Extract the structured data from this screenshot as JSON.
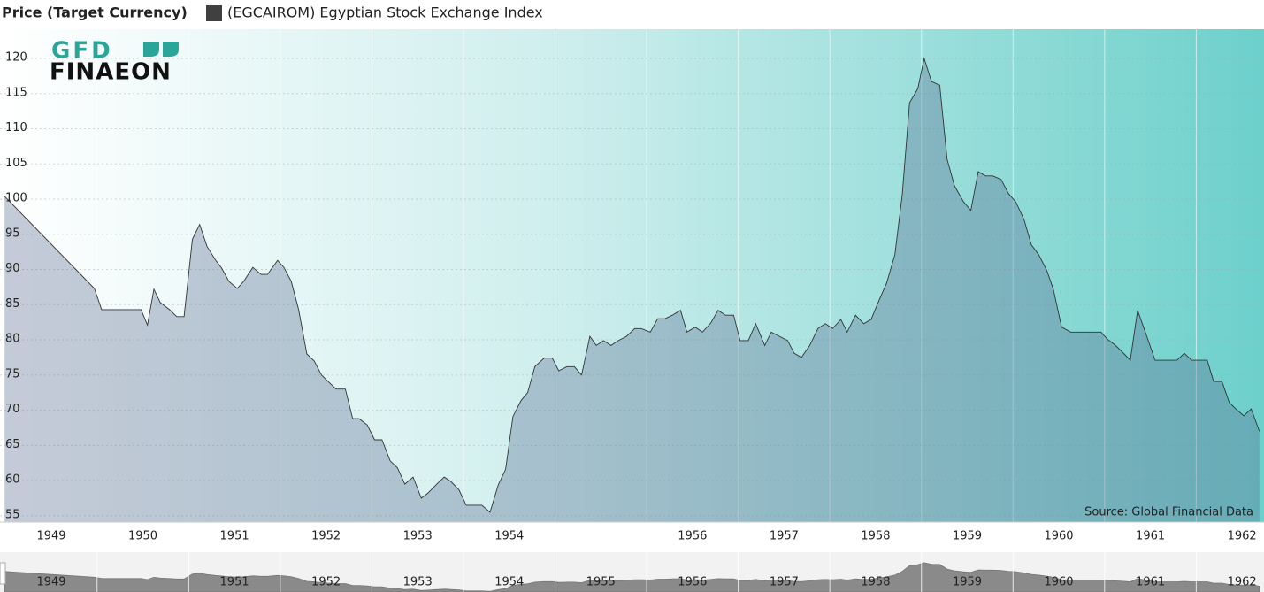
{
  "chart_data": {
    "type": "area",
    "legend_title": "Price (Target Currency)",
    "source": "Source: Global Financial Data",
    "logo": {
      "top": "GFD",
      "bottom": "FINAEON"
    },
    "x": [
      1948.99,
      1949.97,
      1950.05,
      1950.48,
      1950.55,
      1950.62,
      1950.69,
      1950.79,
      1950.87,
      1950.95,
      1951.04,
      1951.12,
      1951.2,
      1951.29,
      1951.36,
      1951.44,
      1951.53,
      1951.6,
      1951.7,
      1951.79,
      1951.86,
      1951.97,
      1952.04,
      1952.12,
      1952.2,
      1952.29,
      1952.37,
      1952.45,
      1952.53,
      1952.61,
      1952.71,
      1952.79,
      1952.86,
      1952.95,
      1953.03,
      1953.11,
      1953.2,
      1953.28,
      1953.36,
      1953.45,
      1953.54,
      1953.61,
      1953.7,
      1953.79,
      1953.86,
      1953.95,
      1954.03,
      1954.11,
      1954.2,
      1954.29,
      1954.38,
      1954.46,
      1954.54,
      1954.63,
      1954.7,
      1954.78,
      1954.88,
      1954.97,
      1955.04,
      1955.13,
      1955.21,
      1955.29,
      1955.38,
      1955.45,
      1955.53,
      1955.61,
      1955.69,
      1955.78,
      1955.87,
      1955.94,
      1956.04,
      1956.12,
      1956.2,
      1956.28,
      1956.37,
      1956.44,
      1956.53,
      1956.61,
      1956.7,
      1956.78,
      1956.86,
      1956.95,
      1957.02,
      1957.11,
      1957.19,
      1957.29,
      1957.36,
      1957.45,
      1957.54,
      1957.61,
      1957.69,
      1957.78,
      1957.87,
      1957.95,
      1958.03,
      1958.12,
      1958.19,
      1958.28,
      1958.37,
      1958.45,
      1958.53,
      1958.62,
      1958.71,
      1958.79,
      1958.87,
      1958.96,
      1959.03,
      1959.11,
      1959.2,
      1959.28,
      1959.36,
      1959.46,
      1959.54,
      1959.62,
      1959.7,
      1959.78,
      1959.87,
      1959.95,
      1960.03,
      1960.12,
      1960.2,
      1960.28,
      1960.37,
      1960.44,
      1960.53,
      1960.63,
      1960.71,
      1960.88,
      1960.96,
      1961.03,
      1961.12,
      1961.2,
      1961.28,
      1961.36,
      1961.46,
      1961.55,
      1961.62,
      1961.79,
      1961.87,
      1961.95,
      1962.12,
      1962.19,
      1962.28,
      1962.36,
      1962.44,
      1962.52,
      1962.6,
      1962.69
    ],
    "series": [
      {
        "name": "(EGCAIROM) Egyptian Stock Exchange Index",
        "color": "#404040",
        "line_color": "#333333",
        "area_color": "#5a6a8f",
        "values": [
          100.4,
          87.3,
          84.3,
          84.3,
          82.1,
          87.2,
          85.3,
          84.3,
          83.3,
          83.3,
          94.3,
          96.4,
          93.3,
          91.4,
          90.2,
          88.3,
          87.3,
          88.3,
          90.3,
          89.3,
          89.3,
          91.3,
          90.3,
          88.3,
          84.3,
          78.0,
          77.0,
          75.0,
          74.0,
          73.0,
          73.0,
          68.8,
          68.8,
          67.9,
          65.8,
          65.8,
          62.8,
          61.8,
          59.5,
          60.5,
          57.5,
          58.2,
          59.4,
          60.5,
          59.9,
          58.7,
          56.5,
          56.5,
          56.5,
          55.5,
          59.4,
          61.6,
          69.1,
          71.4,
          72.5,
          76.2,
          77.4,
          77.4,
          75.6,
          76.2,
          76.2,
          75.0,
          80.5,
          79.2,
          79.9,
          79.2,
          79.9,
          80.5,
          81.6,
          81.6,
          81.1,
          83.0,
          83.0,
          83.5,
          84.2,
          81.1,
          81.8,
          81.1,
          82.4,
          84.2,
          83.5,
          83.5,
          79.9,
          79.9,
          82.3,
          79.2,
          81.1,
          80.5,
          79.9,
          78.1,
          77.5,
          79.2,
          81.6,
          82.3,
          81.6,
          82.9,
          81.1,
          83.5,
          82.3,
          82.9,
          85.4,
          88.1,
          92.1,
          100.6,
          113.7,
          115.7,
          120.0,
          116.7,
          116.2,
          105.7,
          101.9,
          99.6,
          98.4,
          103.9,
          103.3,
          103.3,
          102.8,
          100.8,
          99.6,
          97.1,
          93.5,
          92.1,
          89.8,
          87.2,
          81.8,
          81.1,
          81.1,
          81.1,
          81.1,
          80.1,
          79.2,
          78.2,
          77.1,
          84.2,
          80.5,
          77.1,
          77.1,
          77.1,
          78.1,
          77.1,
          77.1,
          74.1,
          74.1,
          71.1,
          70.1,
          69.2,
          70.2,
          67.0
        ]
      }
    ],
    "xlim": [
      1948.94,
      1962.74
    ],
    "ylim": [
      54.1,
      124.15
    ],
    "yticks": [
      55,
      60,
      65,
      70,
      75,
      80,
      85,
      90,
      95,
      100,
      105,
      110,
      115,
      120
    ],
    "xticks": [
      {
        "value": 1949.5,
        "label": "1949"
      },
      {
        "value": 1950.5,
        "label": "1950"
      },
      {
        "value": 1951.5,
        "label": "1951"
      },
      {
        "value": 1952.5,
        "label": "1952"
      },
      {
        "value": 1953.5,
        "label": "1953"
      },
      {
        "value": 1954.5,
        "label": "1954"
      },
      {
        "value": 1956.5,
        "label": "1956"
      },
      {
        "value": 1957.5,
        "label": "1957"
      },
      {
        "value": 1958.5,
        "label": "1958"
      },
      {
        "value": 1959.5,
        "label": "1959"
      },
      {
        "value": 1960.5,
        "label": "1960"
      },
      {
        "value": 1961.5,
        "label": "1961"
      },
      {
        "value": 1962.5,
        "label": "1962"
      }
    ],
    "xgrid": [
      1950,
      1951,
      1952,
      1953,
      1954,
      1955,
      1956,
      1957,
      1958,
      1959,
      1960,
      1961,
      1962
    ],
    "grid": true,
    "navigator_xticks": [
      {
        "value": 1949.5,
        "label": "1949"
      },
      {
        "value": 1951.5,
        "label": "1951"
      },
      {
        "value": 1952.5,
        "label": "1952"
      },
      {
        "value": 1953.5,
        "label": "1953"
      },
      {
        "value": 1954.5,
        "label": "1954"
      },
      {
        "value": 1955.5,
        "label": "1955"
      },
      {
        "value": 1956.5,
        "label": "1956"
      },
      {
        "value": 1957.5,
        "label": "1957"
      },
      {
        "value": 1958.5,
        "label": "1958"
      },
      {
        "value": 1959.5,
        "label": "1959"
      },
      {
        "value": 1960.5,
        "label": "1960"
      },
      {
        "value": 1961.5,
        "label": "1961"
      },
      {
        "value": 1962.5,
        "label": "1962"
      }
    ]
  }
}
